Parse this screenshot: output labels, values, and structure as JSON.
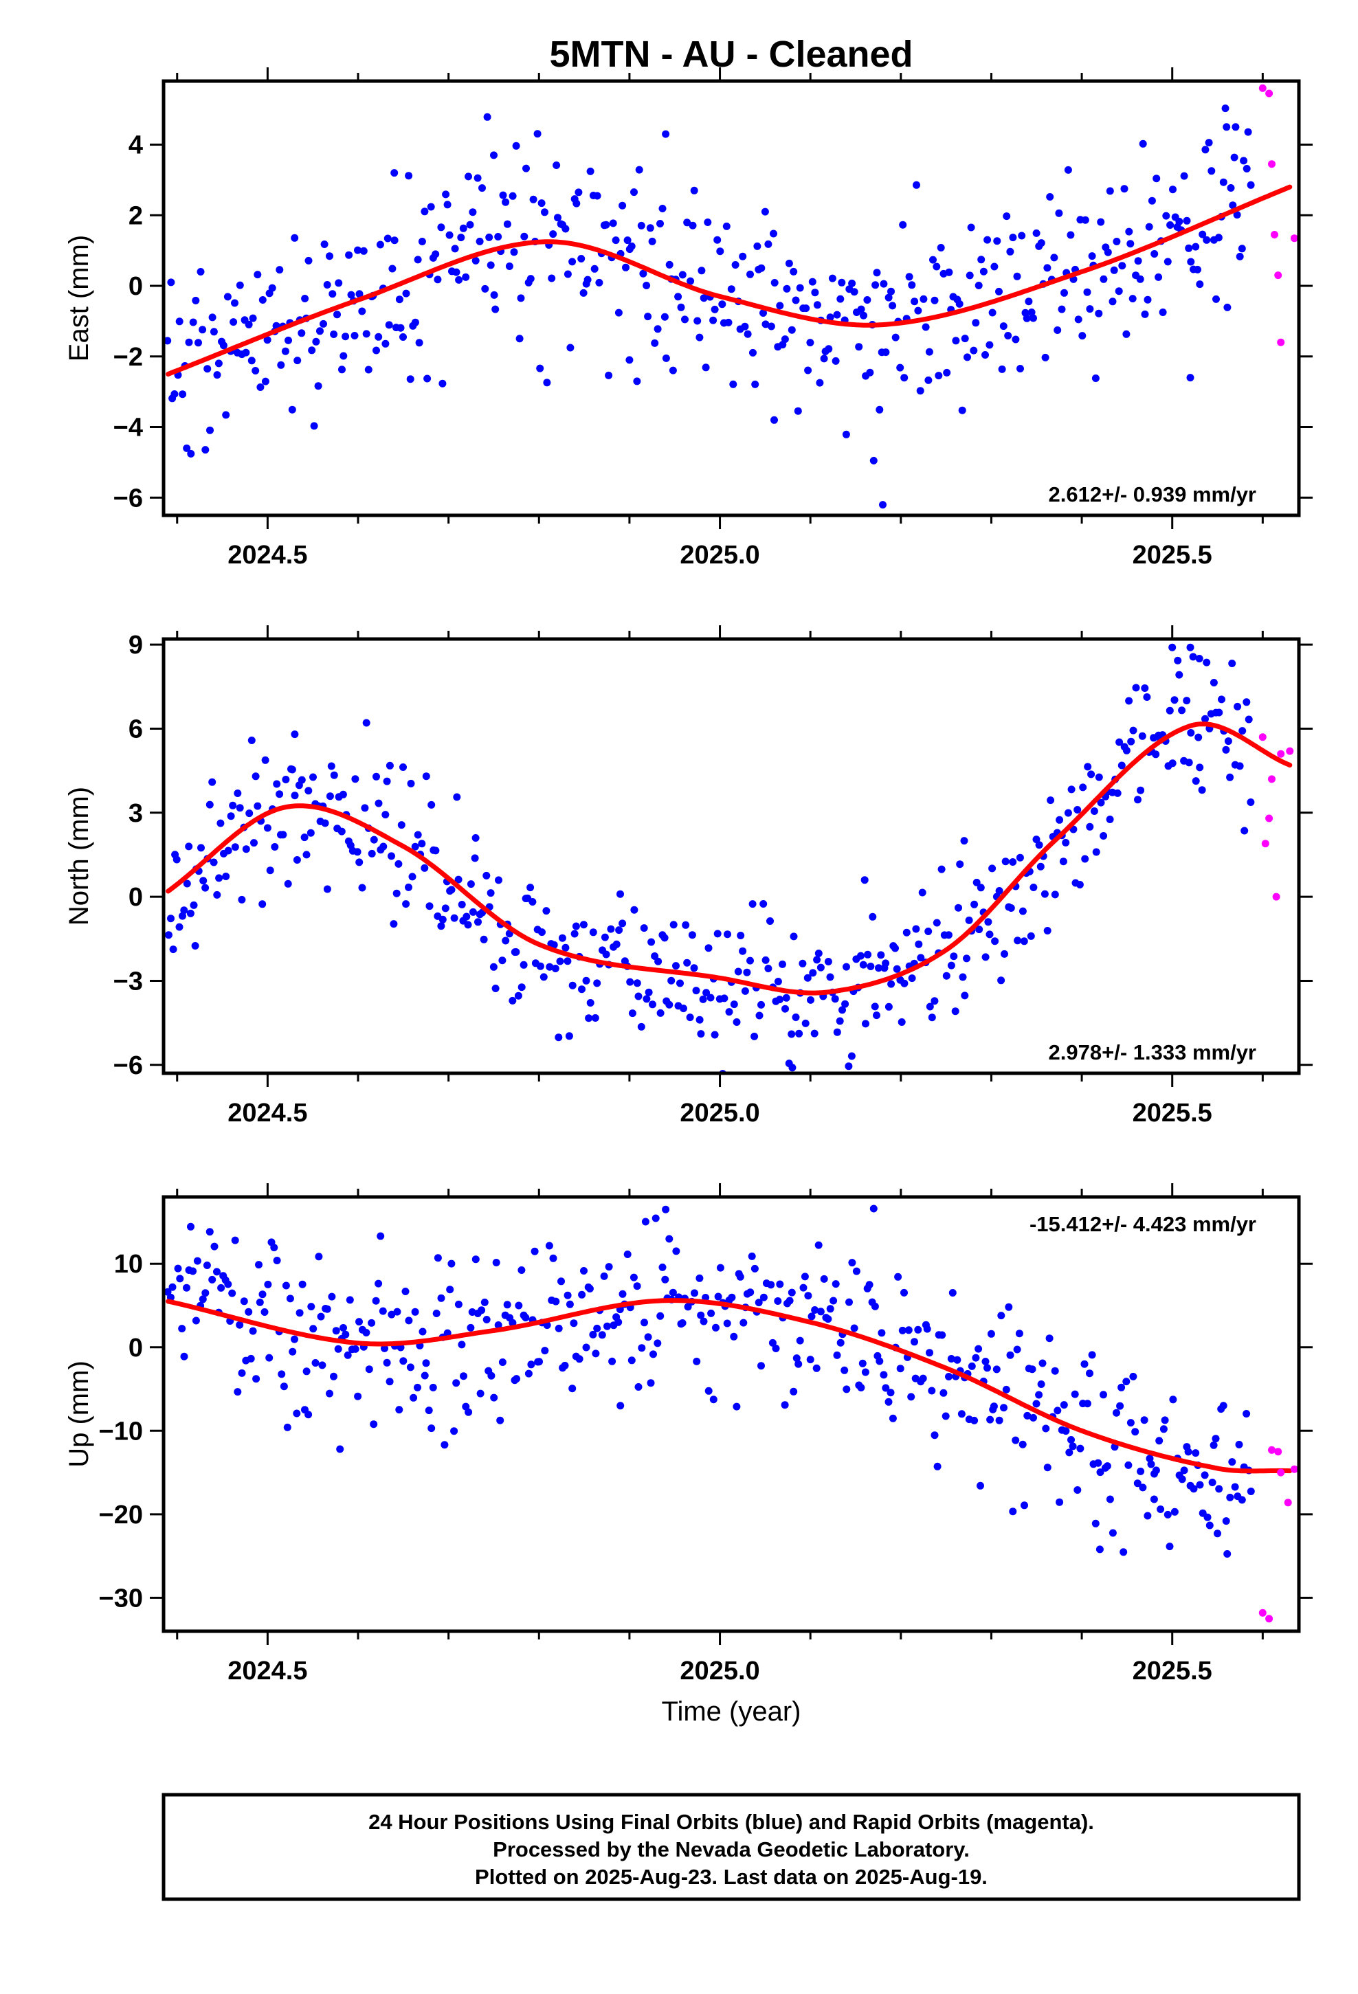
{
  "title": "5MTN  - AU - Cleaned",
  "footer": {
    "lines": [
      "24 Hour Positions Using Final Orbits (blue) and Rapid Orbits (magenta).",
      "Processed by the Nevada Geodetic Laboratory.",
      "Plotted on 2025-Aug-23. Last data on 2025-Aug-19."
    ]
  },
  "colors": {
    "final": "#0000ff",
    "rapid": "#ff00ff",
    "fit": "#ff0000",
    "frame": "#000000"
  },
  "chart_data": [
    {
      "type": "scatter",
      "component": "east",
      "ylabel": "East (mm)",
      "xlabel": "",
      "xlim": [
        2024.385,
        2025.64
      ],
      "ylim": [
        -6.5,
        5.8
      ],
      "x_ticks": [
        2024.5,
        2025.0,
        2025.5
      ],
      "x_tick_labels": [
        "2024.5",
        "2025.0",
        "2025.5"
      ],
      "y_ticks": [
        -6,
        -4,
        -2,
        0,
        2,
        4
      ],
      "y_tick_labels": [
        "−6",
        "−4",
        "−2",
        "0",
        "2",
        "4"
      ],
      "rate": "2.612+/- 0.939 mm/yr",
      "rate_position": "bottom-right",
      "fit": {
        "t_start": 2024.39,
        "t_end": 2025.63,
        "anchor_t": [
          2024.39,
          2024.6,
          2024.81,
          2025.0,
          2025.18,
          2025.4,
          2025.63
        ],
        "anchor_v": [
          -2.5,
          -0.4,
          1.25,
          -0.3,
          -1.1,
          0.4,
          2.8
        ]
      },
      "final_scatter": 2.5,
      "final_outliers": [
        [
          2025.18,
          -6.2
        ],
        [
          2025.17,
          -4.95
        ],
        [
          2024.94,
          4.3
        ],
        [
          2024.64,
          3.2
        ],
        [
          2024.75,
          3.7
        ],
        [
          2025.05,
          2.1
        ],
        [
          2025.56,
          4.5
        ],
        [
          2025.57,
          4.5
        ],
        [
          2025.52,
          -2.6
        ],
        [
          2024.9,
          -2.1
        ],
        [
          2025.06,
          -3.8
        ]
      ],
      "rapid_points": [
        [
          2025.6,
          5.6
        ],
        [
          2025.607,
          5.45
        ],
        [
          2025.61,
          3.45
        ],
        [
          2025.613,
          1.45
        ],
        [
          2025.617,
          0.3
        ],
        [
          2025.62,
          -1.6
        ],
        [
          2025.635,
          1.35
        ]
      ]
    },
    {
      "type": "scatter",
      "component": "north",
      "ylabel": "North (mm)",
      "xlabel": "",
      "xlim": [
        2024.385,
        2025.64
      ],
      "ylim": [
        -6.3,
        9.2
      ],
      "x_ticks": [
        2024.5,
        2025.0,
        2025.5
      ],
      "x_tick_labels": [
        "2024.5",
        "2025.0",
        "2025.5"
      ],
      "y_ticks": [
        -6,
        -3,
        0,
        3,
        6,
        9
      ],
      "y_tick_labels": [
        "−6",
        "−3",
        "0",
        "3",
        "6",
        "9"
      ],
      "rate": "2.978+/- 1.333 mm/yr",
      "rate_position": "bottom-right",
      "fit": {
        "t_start": 2024.39,
        "t_end": 2025.63,
        "anchor_t": [
          2024.39,
          2024.52,
          2024.65,
          2024.8,
          2025.0,
          2025.12,
          2025.25,
          2025.37,
          2025.52,
          2025.63
        ],
        "anchor_v": [
          0.2,
          3.2,
          1.8,
          -1.7,
          -2.9,
          -3.4,
          -1.9,
          2.0,
          6.1,
          4.7
        ]
      },
      "final_scatter": 2.4,
      "final_outliers": [
        [
          2025.52,
          8.9
        ],
        [
          2025.5,
          8.9
        ],
        [
          2025.53,
          8.5
        ],
        [
          2024.42,
          -1.75
        ],
        [
          2025.08,
          -6.1
        ],
        [
          2024.53,
          5.8
        ],
        [
          2025.27,
          2.0
        ],
        [
          2024.73,
          2.1
        ],
        [
          2025.16,
          0.6
        ]
      ],
      "rapid_points": [
        [
          2025.6,
          5.7
        ],
        [
          2025.603,
          1.9
        ],
        [
          2025.607,
          2.8
        ],
        [
          2025.61,
          4.2
        ],
        [
          2025.615,
          0.0
        ],
        [
          2025.62,
          5.1
        ],
        [
          2025.63,
          5.2
        ]
      ]
    },
    {
      "type": "scatter",
      "component": "up",
      "ylabel": "Up (mm)",
      "xlabel": "Time (year)",
      "xlim": [
        2024.385,
        2025.64
      ],
      "ylim": [
        -34,
        18
      ],
      "x_ticks": [
        2024.5,
        2025.0,
        2025.5
      ],
      "x_tick_labels": [
        "2024.5",
        "2025.0",
        "2025.5"
      ],
      "y_ticks": [
        -30,
        -20,
        -10,
        0,
        10
      ],
      "y_tick_labels": [
        "−30",
        "−20",
        "−10",
        "0",
        "10"
      ],
      "rate": "-15.412+/- 4.423 mm/yr",
      "rate_position": "top-right",
      "fit": {
        "t_start": 2024.39,
        "t_end": 2025.63,
        "anchor_t": [
          2024.39,
          2024.6,
          2024.75,
          2024.94,
          2025.1,
          2025.25,
          2025.4,
          2025.55,
          2025.63
        ],
        "anchor_v": [
          5.5,
          0.5,
          2.0,
          5.6,
          3.0,
          -2.5,
          -10.0,
          -14.5,
          -14.8
        ]
      },
      "final_scatter": 9.5,
      "final_outliers": [
        [
          2024.94,
          16.5
        ],
        [
          2025.17,
          16.6
        ],
        [
          2025.42,
          -24.2
        ],
        [
          2024.58,
          -12.2
        ],
        [
          2024.89,
          -7.0
        ],
        [
          2025.3,
          1.6
        ],
        [
          2025.55,
          -22.3
        ],
        [
          2025.48,
          -18.2
        ]
      ],
      "rapid_points": [
        [
          2025.6,
          -31.8
        ],
        [
          2025.607,
          -32.5
        ],
        [
          2025.61,
          -12.3
        ],
        [
          2025.617,
          -12.5
        ],
        [
          2025.62,
          -15.0
        ],
        [
          2025.628,
          -18.6
        ],
        [
          2025.635,
          -14.6
        ]
      ]
    }
  ]
}
